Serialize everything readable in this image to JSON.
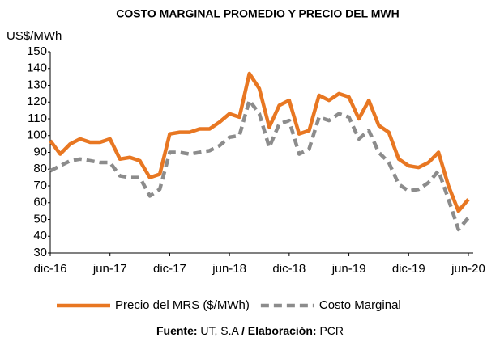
{
  "chart_data": {
    "type": "line",
    "title": "COSTO MARGINAL PROMEDIO Y PRECIO DEL MWH",
    "y_label": "US$/MWh",
    "categories": [
      "dic-16",
      null,
      null,
      null,
      null,
      null,
      "jun-17",
      null,
      null,
      null,
      null,
      null,
      "dic-17",
      null,
      null,
      null,
      null,
      null,
      "jun-18",
      null,
      null,
      null,
      null,
      null,
      "dic-18",
      null,
      null,
      null,
      null,
      null,
      "jun-19",
      null,
      null,
      null,
      null,
      null,
      "dic-19",
      null,
      null,
      null,
      null,
      null,
      "jun-20"
    ],
    "series": [
      {
        "name": "Precio del MRS ($/MWh)",
        "color": "#e87722",
        "dash": false,
        "values": [
          97,
          89,
          95,
          98,
          96,
          96,
          98,
          86,
          87,
          85,
          75,
          77,
          101,
          102,
          102,
          104,
          104,
          108,
          113,
          111,
          137,
          128,
          105,
          118,
          121,
          101,
          103,
          124,
          121,
          125,
          123,
          110,
          121,
          106,
          102,
          86,
          82,
          81,
          84,
          90,
          70,
          55,
          62
        ]
      },
      {
        "name": "Costo Marginal",
        "color": "#8c8c8c",
        "dash": true,
        "values": [
          79,
          82,
          85,
          86,
          85,
          84,
          84,
          76,
          75,
          75,
          64,
          68,
          90,
          90,
          89,
          90,
          91,
          94,
          99,
          100,
          121,
          113,
          93,
          107,
          109,
          89,
          92,
          111,
          109,
          113,
          111,
          98,
          103,
          90,
          84,
          71,
          67,
          68,
          72,
          79,
          62,
          44,
          51
        ]
      }
    ],
    "ylim": [
      30,
      150
    ],
    "yticks": [
      30,
      40,
      50,
      60,
      70,
      80,
      90,
      100,
      110,
      120,
      130,
      140,
      150
    ],
    "grid": false,
    "legend": "bottom",
    "source": {
      "label1": "Fuente:",
      "text1": "UT, S.A",
      "label2": "/ Elaboración:",
      "text2": "PCR"
    }
  }
}
